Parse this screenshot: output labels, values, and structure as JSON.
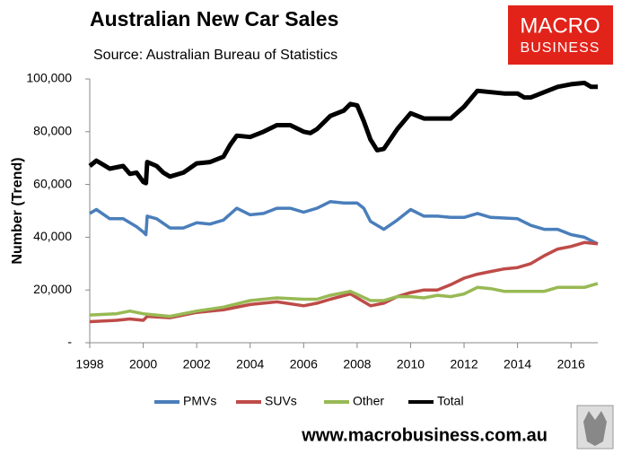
{
  "chart_data": {
    "type": "line",
    "title": "Australian New Car Sales",
    "subtitle": "Source: Australian Bureau of Statistics",
    "ylabel": "Number (Trend)",
    "brand": [
      "MACRO",
      "BUSINESS"
    ],
    "footer": "www.macrobusiness.com.au",
    "xlim": [
      1998,
      2017
    ],
    "xticks": [
      1998,
      2000,
      2002,
      2004,
      2006,
      2008,
      2010,
      2012,
      2014,
      2016
    ],
    "ylim": [
      0,
      100000
    ],
    "yticks": [
      {
        "value": 0,
        "label": "-"
      },
      {
        "value": 20000,
        "label": "20,000"
      },
      {
        "value": 40000,
        "label": "40,000"
      },
      {
        "value": 60000,
        "label": "60,000"
      },
      {
        "value": 80000,
        "label": "80,000"
      },
      {
        "value": 100000,
        "label": "100,000"
      }
    ],
    "grid": false,
    "legend": "bottom",
    "series": [
      {
        "name": "PMVs",
        "color": "#4a7ebb",
        "x": [
          1998,
          1998.25,
          1998.75,
          1999.25,
          1999.75,
          2000,
          2000.1,
          2000.15,
          2000.5,
          2001,
          2001.5,
          2002,
          2002.5,
          2003,
          2003.5,
          2004,
          2004.5,
          2005,
          2005.5,
          2006,
          2006.5,
          2007,
          2007.5,
          2008,
          2008.25,
          2008.5,
          2009,
          2009.5,
          2010,
          2010.5,
          2011,
          2011.5,
          2012,
          2012.5,
          2013,
          2014,
          2014.5,
          2015,
          2015.5,
          2016,
          2016.5,
          2017
        ],
        "values": [
          49000,
          50500,
          47000,
          47000,
          44000,
          42000,
          41000,
          48000,
          47000,
          43500,
          43500,
          45500,
          45000,
          46500,
          51000,
          48500,
          49000,
          51000,
          51000,
          49500,
          51000,
          53500,
          53000,
          53000,
          51000,
          46000,
          43000,
          46500,
          50500,
          48000,
          48000,
          47500,
          47500,
          49000,
          47500,
          47000,
          44500,
          43000,
          43000,
          41000,
          40000,
          37500
        ]
      },
      {
        "name": "SUVs",
        "color": "#be4b48",
        "x": [
          1998,
          1999,
          1999.5,
          2000,
          2000.15,
          2001,
          2002,
          2003,
          2004,
          2005,
          2006,
          2006.5,
          2007,
          2007.75,
          2008.5,
          2009,
          2009.5,
          2010,
          2010.5,
          2011,
          2011.5,
          2012,
          2012.5,
          2013,
          2013.5,
          2014,
          2014.5,
          2015,
          2015.5,
          2016,
          2016.5,
          2017
        ],
        "values": [
          8000,
          8500,
          9000,
          8500,
          10000,
          9500,
          11500,
          12500,
          14500,
          15500,
          14000,
          15000,
          16500,
          18500,
          14000,
          15000,
          17500,
          19000,
          20000,
          20000,
          22000,
          24500,
          26000,
          27000,
          28000,
          28500,
          30000,
          33000,
          35500,
          36500,
          38000,
          37500
        ]
      },
      {
        "name": "Other",
        "color": "#98b954",
        "x": [
          1998,
          1999,
          1999.5,
          2000,
          2001,
          2002,
          2003,
          2004,
          2005,
          2006,
          2006.5,
          2007,
          2007.75,
          2008.5,
          2009,
          2009.5,
          2010,
          2010.5,
          2011,
          2011.5,
          2012,
          2012.5,
          2013,
          2013.5,
          2014,
          2014.5,
          2015,
          2015.5,
          2016,
          2016.5,
          2017
        ],
        "values": [
          10500,
          11000,
          12000,
          11000,
          10000,
          12000,
          13500,
          16000,
          17000,
          16500,
          16500,
          18000,
          19500,
          16000,
          16000,
          17500,
          17500,
          17000,
          18000,
          17500,
          18500,
          21000,
          20500,
          19500,
          19500,
          19500,
          19500,
          21000,
          21000,
          21000,
          22500
        ]
      },
      {
        "name": "Total",
        "color": "#000000",
        "x": [
          1998,
          1998.25,
          1998.5,
          1998.75,
          1999,
          1999.25,
          1999.5,
          1999.75,
          2000,
          2000.1,
          2000.15,
          2000.5,
          2000.75,
          2001,
          2001.5,
          2002,
          2002.5,
          2003,
          2003.25,
          2003.5,
          2004,
          2004.5,
          2005,
          2005.5,
          2006,
          2006.25,
          2006.5,
          2007,
          2007.5,
          2007.75,
          2008,
          2008.25,
          2008.5,
          2008.75,
          2009,
          2009.5,
          2010,
          2010.5,
          2011,
          2011.5,
          2012,
          2012.5,
          2013,
          2013.5,
          2014,
          2014.25,
          2014.5,
          2015,
          2015.5,
          2016,
          2016.5,
          2016.75,
          2017
        ],
        "values": [
          67000,
          69000,
          67500,
          66000,
          66500,
          67000,
          64000,
          64500,
          61000,
          60500,
          68500,
          67000,
          64500,
          63000,
          64500,
          68000,
          68500,
          70500,
          75000,
          78500,
          78000,
          80000,
          82500,
          82500,
          80000,
          79500,
          81000,
          86000,
          88000,
          90500,
          90000,
          84000,
          77000,
          73000,
          73500,
          81000,
          87000,
          85000,
          85000,
          85000,
          89500,
          95500,
          95000,
          94500,
          94500,
          93000,
          93000,
          95000,
          97000,
          98000,
          98500,
          97000,
          97000
        ]
      }
    ]
  }
}
